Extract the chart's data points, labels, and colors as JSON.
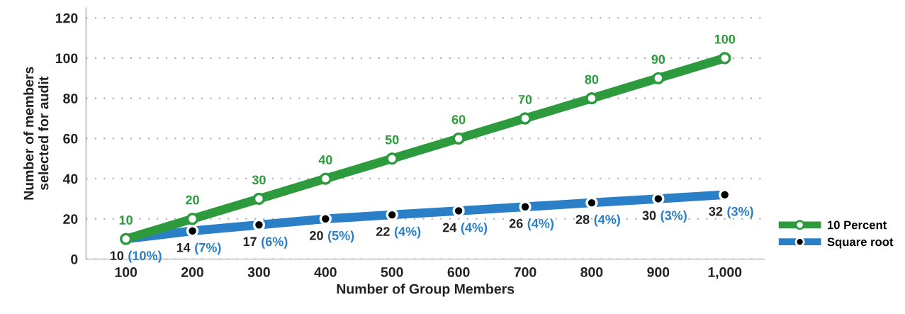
{
  "chart_data": {
    "type": "line",
    "xlabel": "Number of Group Members",
    "ylabel": "Number of members\nselected for audit",
    "x": [
      100,
      200,
      300,
      400,
      500,
      600,
      700,
      800,
      900,
      1000
    ],
    "series": [
      {
        "name": "10 Percent",
        "color": "#2e9a3e",
        "values": [
          10,
          20,
          30,
          40,
          50,
          60,
          70,
          80,
          90,
          100
        ],
        "value_labels": [
          "10",
          "20",
          "30",
          "40",
          "50",
          "60",
          "70",
          "80",
          "90",
          "100"
        ]
      },
      {
        "name": "Square root",
        "color": "#2a7fc6",
        "values": [
          10,
          14,
          17,
          20,
          22,
          24,
          26,
          28,
          30,
          32
        ],
        "value_labels": [
          "10 (10%)",
          "14 (7%)",
          "17 (6%)",
          "20 (5%)",
          "22 (4%)",
          "24 (4%)",
          "26 (4%)",
          "28 (4%)",
          "30 (3%)",
          "32 (3%)"
        ]
      }
    ],
    "xlim": [
      40,
      1060
    ],
    "xticks": [
      100,
      200,
      300,
      400,
      500,
      600,
      700,
      800,
      900,
      {
        "value": 1000,
        "label": "1,000"
      }
    ],
    "ylim": [
      0,
      125
    ],
    "yticks": [
      0,
      20,
      40,
      60,
      80,
      100,
      120
    ],
    "grid": "y",
    "legend": "bottom right",
    "marker": "circle",
    "line_style": "solid"
  }
}
